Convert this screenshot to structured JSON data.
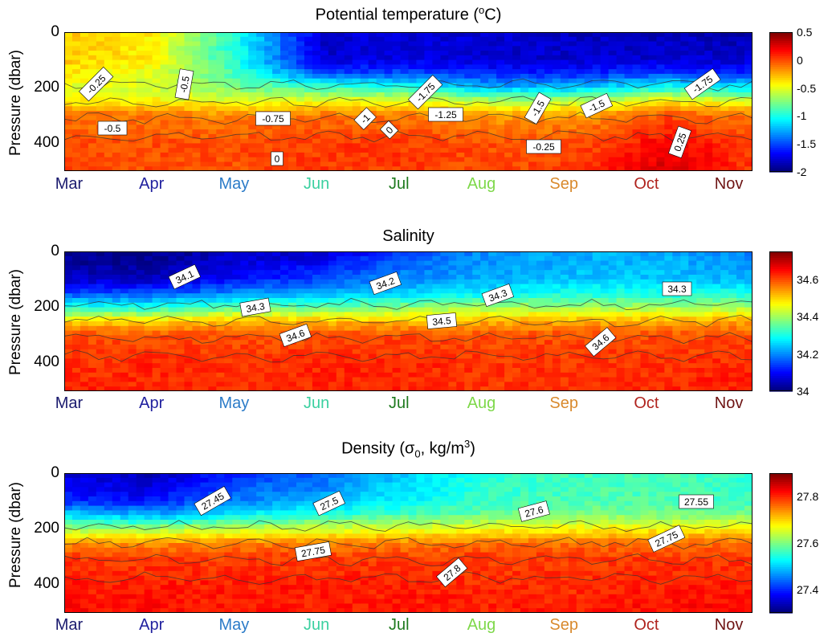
{
  "chart_data": [
    {
      "type": "heatmap",
      "title": "Potential temperature (°C)",
      "title_main": "Potential temperature (",
      "title_sup": "o",
      "title_end": "C)",
      "ylabel": "Pressure (dbar)",
      "xlabel": "",
      "x_categories": [
        "Mar",
        "Apr",
        "May",
        "Jun",
        "Jul",
        "Aug",
        "Sep",
        "Oct",
        "Nov"
      ],
      "y_ticks": [
        "0",
        "200",
        "400"
      ],
      "ylim": [
        0,
        500
      ],
      "y_reversed": true,
      "clim": [
        -2,
        0.5
      ],
      "colorbar_ticks": [
        "0.5",
        "0",
        "-0.5",
        "-1",
        "-1.5",
        "-2"
      ],
      "contour_labels": [
        "-0.25",
        "-0.5",
        "-0.5",
        "-0.75",
        "-1",
        "-1.25",
        "-1.75",
        "-1.5",
        "-1.5",
        "-1.75",
        "-0.25",
        "0",
        "0",
        "0.25"
      ],
      "profile": {
        "depths": [
          0,
          100,
          150,
          200,
          250,
          300,
          400,
          500
        ],
        "months": [
          {
            "month": "Mar",
            "values": [
              -0.3,
              -0.3,
              -0.4,
              -0.5,
              -0.4,
              -0.1,
              0.0,
              0.0
            ]
          },
          {
            "month": "Apr",
            "values": [
              -0.4,
              -0.4,
              -0.5,
              -0.55,
              -0.4,
              -0.1,
              0.0,
              0.0
            ]
          },
          {
            "month": "May",
            "values": [
              -1.0,
              -1.0,
              -0.9,
              -0.75,
              -0.5,
              -0.15,
              0.0,
              0.0
            ]
          },
          {
            "month": "Jun",
            "values": [
              -1.8,
              -1.8,
              -1.5,
              -0.9,
              -0.45,
              -0.1,
              0.05,
              0.05
            ]
          },
          {
            "month": "Jul",
            "values": [
              -1.8,
              -1.75,
              -1.5,
              -1.0,
              -0.45,
              -0.1,
              0.05,
              0.05
            ]
          },
          {
            "month": "Aug",
            "values": [
              -1.8,
              -1.8,
              -1.6,
              -1.25,
              -0.6,
              -0.2,
              0.0,
              0.0
            ]
          },
          {
            "month": "Sep",
            "values": [
              -1.85,
              -1.8,
              -1.6,
              -1.2,
              -0.6,
              -0.2,
              0.0,
              0.05
            ]
          },
          {
            "month": "Oct",
            "values": [
              -1.85,
              -1.8,
              -1.5,
              -1.0,
              -0.4,
              0.0,
              0.2,
              0.3
            ]
          },
          {
            "month": "Nov",
            "values": [
              -1.9,
              -1.8,
              -1.6,
              -1.1,
              -0.5,
              -0.1,
              0.05,
              0.05
            ]
          }
        ]
      }
    },
    {
      "type": "heatmap",
      "title": "Salinity",
      "title_main": "Salinity",
      "title_sup": "",
      "title_end": "",
      "ylabel": "Pressure (dbar)",
      "xlabel": "",
      "x_categories": [
        "Mar",
        "Apr",
        "May",
        "Jun",
        "Jul",
        "Aug",
        "Sep",
        "Oct",
        "Nov"
      ],
      "y_ticks": [
        "0",
        "200",
        "400"
      ],
      "ylim": [
        0,
        500
      ],
      "y_reversed": true,
      "clim": [
        34.0,
        34.75
      ],
      "colorbar_ticks": [
        "34.6",
        "34.4",
        "34.2",
        "34"
      ],
      "contour_labels": [
        "34.1",
        "34.2",
        "34.3",
        "34.3",
        "34.3",
        "34.5",
        "34.6",
        "34.6"
      ],
      "profile": {
        "depths": [
          0,
          100,
          150,
          200,
          250,
          300,
          400,
          500
        ],
        "months": [
          {
            "month": "Mar",
            "values": [
              34.0,
              34.05,
              34.15,
              34.3,
              34.5,
              34.6,
              34.62,
              34.63
            ]
          },
          {
            "month": "Apr",
            "values": [
              34.0,
              34.05,
              34.15,
              34.3,
              34.5,
              34.6,
              34.63,
              34.63
            ]
          },
          {
            "month": "May",
            "values": [
              34.05,
              34.1,
              34.2,
              34.35,
              34.52,
              34.6,
              34.62,
              34.62
            ]
          },
          {
            "month": "Jun",
            "values": [
              34.05,
              34.15,
              34.22,
              34.35,
              34.52,
              34.6,
              34.63,
              34.63
            ]
          },
          {
            "month": "Jul",
            "values": [
              34.15,
              34.2,
              34.25,
              34.38,
              34.52,
              34.6,
              34.63,
              34.63
            ]
          },
          {
            "month": "Aug",
            "values": [
              34.2,
              34.22,
              34.28,
              34.4,
              34.53,
              34.6,
              34.62,
              34.62
            ]
          },
          {
            "month": "Sep",
            "values": [
              34.22,
              34.24,
              34.3,
              34.4,
              34.53,
              34.6,
              34.62,
              34.62
            ]
          },
          {
            "month": "Oct",
            "values": [
              34.22,
              34.24,
              34.3,
              34.4,
              34.53,
              34.6,
              34.62,
              34.63
            ]
          },
          {
            "month": "Nov",
            "values": [
              34.18,
              34.22,
              34.3,
              34.4,
              34.53,
              34.6,
              34.63,
              34.64
            ]
          }
        ]
      }
    },
    {
      "type": "heatmap",
      "title": "Density (σ0, kg/m3)",
      "title_main": "Density (σ",
      "title_sub": "0",
      "title_mid": ", kg/m",
      "title_sup": "3",
      "title_end": ")",
      "ylabel": "Pressure (dbar)",
      "xlabel": "",
      "x_categories": [
        "Mar",
        "Apr",
        "May",
        "Jun",
        "Jul",
        "Aug",
        "Sep",
        "Oct",
        "Nov"
      ],
      "y_ticks": [
        "0",
        "200",
        "400"
      ],
      "ylim": [
        0,
        500
      ],
      "y_reversed": true,
      "clim": [
        27.3,
        27.9
      ],
      "colorbar_ticks": [
        "27.8",
        "27.6",
        "27.4"
      ],
      "contour_labels": [
        "27.45",
        "27.5",
        "27.6",
        "27.55",
        "27.75",
        "27.8",
        "27.75"
      ],
      "profile": {
        "depths": [
          0,
          100,
          150,
          200,
          250,
          300,
          400,
          500
        ],
        "months": [
          {
            "month": "Mar",
            "values": [
              27.35,
              27.4,
              27.5,
              27.62,
              27.74,
              27.79,
              27.81,
              27.82
            ]
          },
          {
            "month": "Apr",
            "values": [
              27.33,
              27.38,
              27.48,
              27.62,
              27.74,
              27.79,
              27.81,
              27.82
            ]
          },
          {
            "month": "May",
            "values": [
              27.4,
              27.45,
              27.52,
              27.64,
              27.75,
              27.79,
              27.81,
              27.81
            ]
          },
          {
            "month": "Jun",
            "values": [
              27.43,
              27.48,
              27.55,
              27.65,
              27.75,
              27.79,
              27.81,
              27.81
            ]
          },
          {
            "month": "Jul",
            "values": [
              27.5,
              27.52,
              27.57,
              27.66,
              27.75,
              27.79,
              27.81,
              27.81
            ]
          },
          {
            "month": "Aug",
            "values": [
              27.55,
              27.56,
              27.59,
              27.67,
              27.76,
              27.79,
              27.8,
              27.81
            ]
          },
          {
            "month": "Sep",
            "values": [
              27.56,
              27.57,
              27.6,
              27.68,
              27.76,
              27.79,
              27.8,
              27.81
            ]
          },
          {
            "month": "Oct",
            "values": [
              27.57,
              27.57,
              27.6,
              27.68,
              27.76,
              27.79,
              27.81,
              27.82
            ]
          },
          {
            "month": "Nov",
            "values": [
              27.55,
              27.56,
              27.6,
              27.68,
              27.76,
              27.79,
              27.81,
              27.83
            ]
          }
        ]
      }
    }
  ],
  "month_colors": [
    "#1a1a6e",
    "#1f1f9e",
    "#2b7bc8",
    "#3ad0a0",
    "#1e7a1e",
    "#7ed84a",
    "#d98a2e",
    "#b0231e",
    "#6e1414"
  ]
}
